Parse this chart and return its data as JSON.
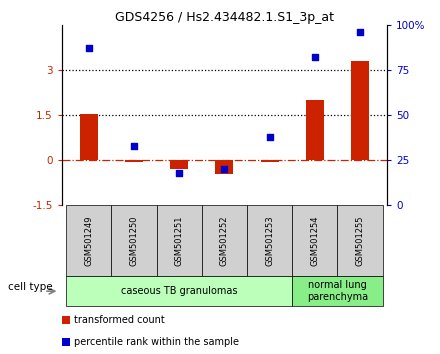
{
  "title": "GDS4256 / Hs2.434482.1.S1_3p_at",
  "samples": [
    "GSM501249",
    "GSM501250",
    "GSM501251",
    "GSM501252",
    "GSM501253",
    "GSM501254",
    "GSM501255"
  ],
  "transformed_count": [
    1.55,
    -0.05,
    -0.28,
    -0.45,
    -0.05,
    2.0,
    3.3
  ],
  "percentile_rank": [
    87,
    33,
    18,
    20,
    38,
    82,
    96
  ],
  "ylim_left": [
    -1.5,
    4.5
  ],
  "ylim_right": [
    0,
    100
  ],
  "yticks_left": [
    -1.5,
    0,
    1.5,
    3
  ],
  "yticks_right": [
    0,
    25,
    50,
    75,
    100
  ],
  "ytick_labels_left": [
    "-1.5",
    "0",
    "1.5",
    "3"
  ],
  "ytick_labels_right": [
    "0",
    "25",
    "50",
    "75",
    "100%"
  ],
  "hlines": [
    1.5,
    3.0
  ],
  "bar_color": "#cc2200",
  "dot_color": "#0000cc",
  "zero_line_color": "#cc2200",
  "hline_color": "#000000",
  "groups": [
    {
      "label": "caseous TB granulomas",
      "samples": [
        0,
        1,
        2,
        3,
        4
      ],
      "color": "#bbffbb"
    },
    {
      "label": "normal lung\nparenchyma",
      "samples": [
        5,
        6
      ],
      "color": "#88ee88"
    }
  ],
  "cell_type_label": "cell type",
  "legend_items": [
    {
      "label": "transformed count",
      "color": "#cc2200"
    },
    {
      "label": "percentile rank within the sample",
      "color": "#0000cc"
    }
  ],
  "bg_sample_color": "#d0d0d0",
  "bar_width": 0.4
}
